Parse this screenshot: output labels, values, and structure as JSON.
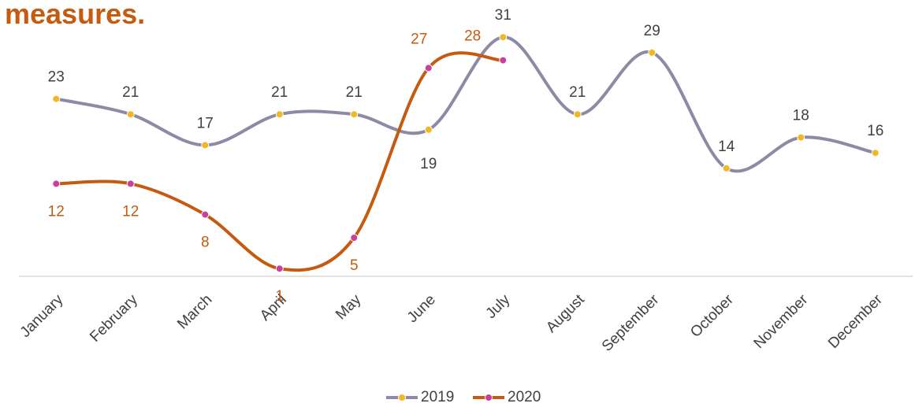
{
  "chart_data": {
    "type": "line",
    "title": "measures.",
    "categories": [
      "January",
      "February",
      "March",
      "April",
      "May",
      "June",
      "July",
      "August",
      "September",
      "October",
      "November",
      "December"
    ],
    "series": [
      {
        "name": "2019",
        "color": "#8e8aa6",
        "marker_color": "#f2b824",
        "values": [
          23,
          21,
          17,
          21,
          21,
          19,
          31,
          21,
          29,
          14,
          18,
          16
        ]
      },
      {
        "name": "2020",
        "color": "#c55a11",
        "marker_color": "#c8409c",
        "values": [
          12,
          12,
          8,
          1,
          5,
          27,
          28,
          null,
          null,
          null,
          null,
          null
        ]
      }
    ],
    "ylim": [
      0,
      35
    ],
    "legend": "bottom"
  }
}
